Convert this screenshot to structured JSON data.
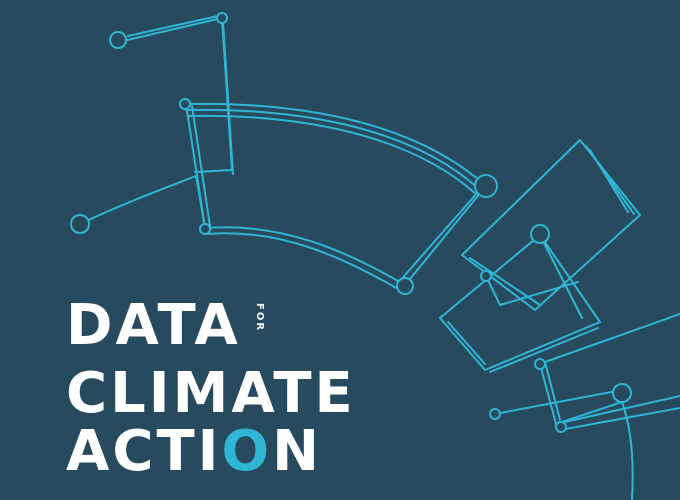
{
  "title": {
    "line1": "DATA",
    "small": "FOR",
    "line2": "CLIMATE",
    "line3_prefix": "ACTI",
    "line3_ring": "O",
    "line3_suffix": "N"
  },
  "colors": {
    "background": "#284a5e",
    "line": "#2fb6d4",
    "text": "#ffffff"
  }
}
